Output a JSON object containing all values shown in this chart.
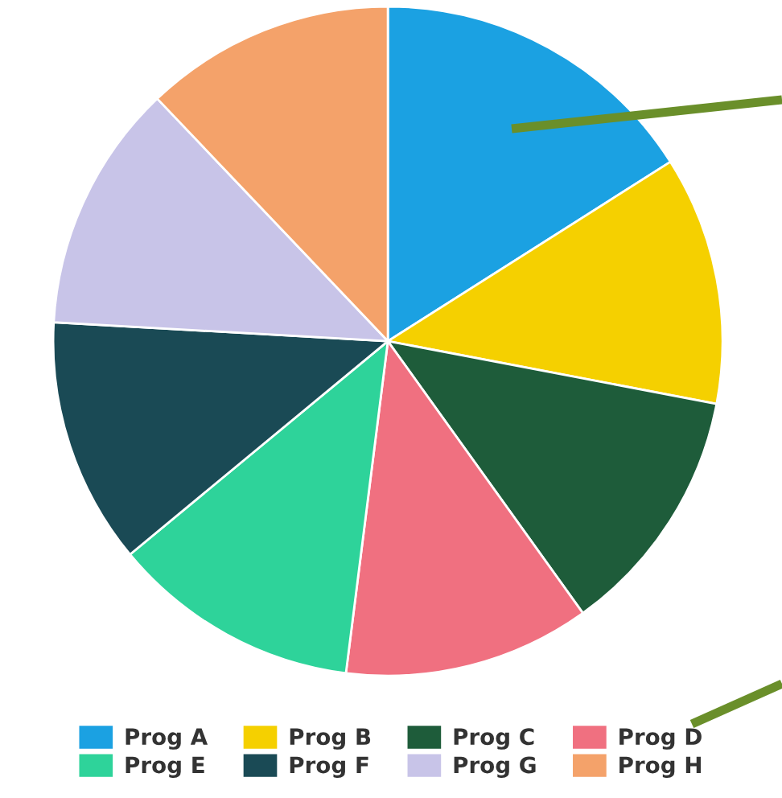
{
  "chart_data": {
    "type": "pie",
    "categories": [
      "Prog A",
      "Prog B",
      "Prog C",
      "Prog D",
      "Prog E",
      "Prog F",
      "Prog G",
      "Prog H"
    ],
    "values": [
      16,
      12,
      12.1,
      11.9,
      12,
      11.9,
      12,
      12.1
    ],
    "colors": [
      "#1ba1e2",
      "#f5d000",
      "#1e5c3a",
      "#f07080",
      "#2ed39a",
      "#1a4a55",
      "#c8c4e8",
      "#f4a26a"
    ],
    "legend": "bottom"
  }
}
